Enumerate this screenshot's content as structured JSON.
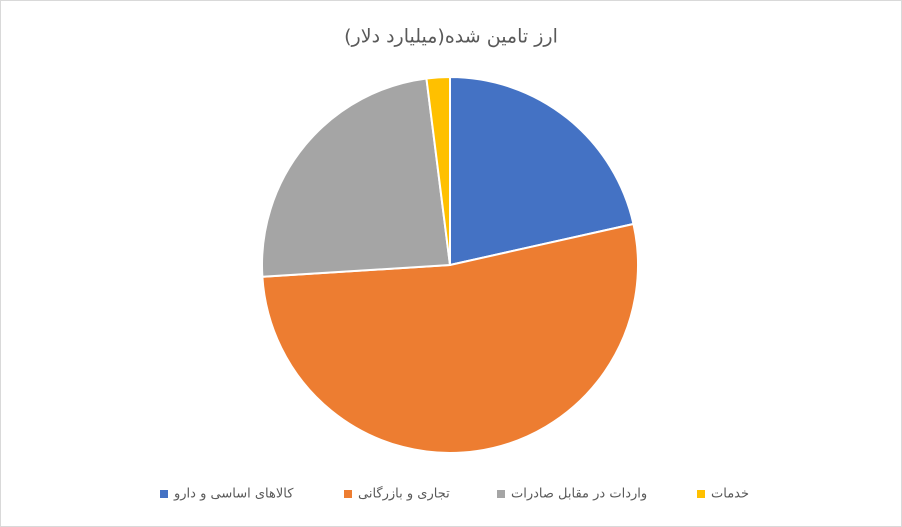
{
  "chart_data": {
    "type": "pie",
    "title": "ارز تامین شده(میلیارد دلار)",
    "categories": [
      "کالاهای اساسی و دارو",
      "تجاری و بازرگانی",
      "واردات در مقابل صادرات",
      "خدمات"
    ],
    "values": [
      21.5,
      52.5,
      24,
      2
    ],
    "colors": [
      "#4472c4",
      "#ed7d31",
      "#a5a5a5",
      "#ffc000"
    ],
    "legend": "bottom"
  }
}
